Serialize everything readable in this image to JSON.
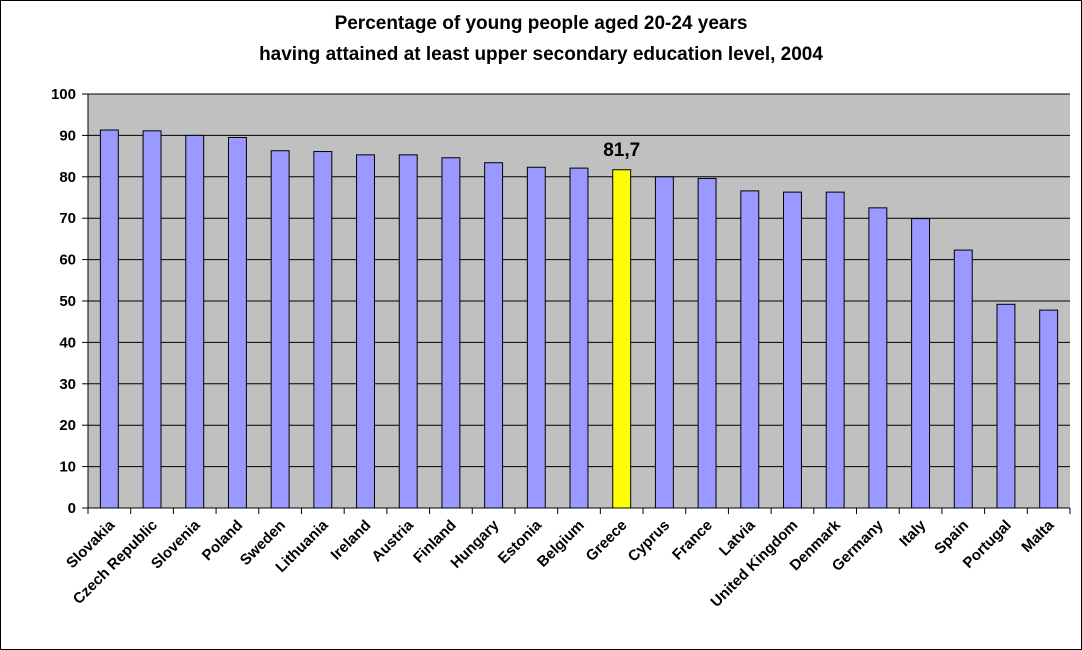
{
  "chart_data": {
    "type": "bar",
    "title_line1": "Percentage of young people aged 20-24 years",
    "title_line2": "having attained at least upper secondary education level, 2004",
    "xlabel": "",
    "ylabel": "",
    "ylim": [
      0,
      100
    ],
    "yticks": [
      "0",
      "10",
      "20",
      "30",
      "40",
      "50",
      "60",
      "70",
      "80",
      "90",
      "100"
    ],
    "grid": true,
    "categories": [
      "Slovakia",
      "Czech Republic",
      "Slovenia",
      "Poland",
      "Sweden",
      "Lithuania",
      "Ireland",
      "Austria",
      "Finland",
      "Hungary",
      "Estonia",
      "Belgium",
      "Greece",
      "Cyprus",
      "France",
      "Latvia",
      "United Kingdom",
      "Denmark",
      "Germany",
      "Italy",
      "Spain",
      "Portugal",
      "Malta"
    ],
    "values": [
      91.3,
      91.1,
      90.0,
      89.5,
      86.3,
      86.1,
      85.3,
      85.3,
      84.6,
      83.4,
      82.3,
      82.1,
      81.7,
      80.0,
      79.6,
      76.6,
      76.3,
      76.3,
      72.5,
      69.9,
      62.3,
      49.2,
      47.8
    ],
    "highlight_category": "Greece",
    "highlight_label": "81,7",
    "colors": {
      "bar": "#9999ff",
      "highlight": "#ffff00",
      "plot_background": "#c0c0c0",
      "gridline": "#000000"
    }
  }
}
